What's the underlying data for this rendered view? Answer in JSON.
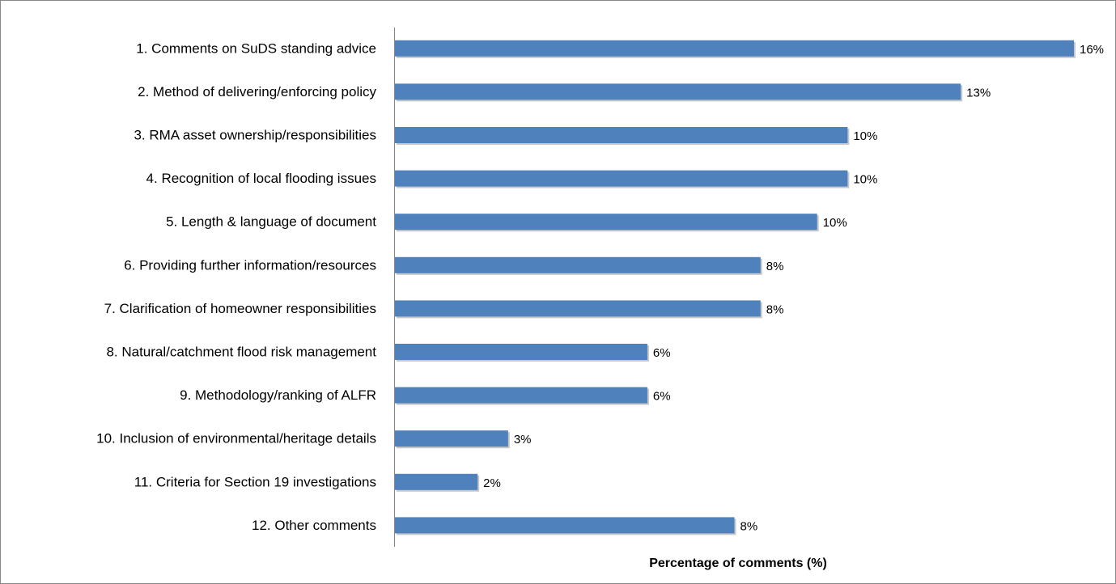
{
  "chart_data": {
    "type": "bar",
    "orientation": "horizontal",
    "x_label": "Percentage of comments (%)",
    "categories": [
      "1. Comments on SuDS standing advice",
      "2. Method of delivering/enforcing policy",
      "3. RMA asset ownership/responsibilities",
      "4. Recognition of local flooding issues",
      "5. Length & language of document",
      "6. Providing further information/resources",
      "7. Clarification of homeowner responsibilities",
      "8. Natural/catchment flood risk management",
      "9. Methodology/ranking of ALFR",
      "10. Inclusion of environmental/heritage details",
      "11. Criteria for Section 19 investigations",
      "12. Other comments"
    ],
    "values": [
      15.6,
      13.0,
      10.4,
      10.4,
      9.7,
      8.4,
      8.4,
      5.8,
      5.8,
      2.6,
      1.9,
      7.8
    ],
    "value_labels": [
      "16%",
      "13%",
      "10%",
      "10%",
      "10%",
      "8%",
      "8%",
      "6%",
      "6%",
      "3%",
      "2%",
      "8%"
    ],
    "color": "#4f81bd"
  }
}
